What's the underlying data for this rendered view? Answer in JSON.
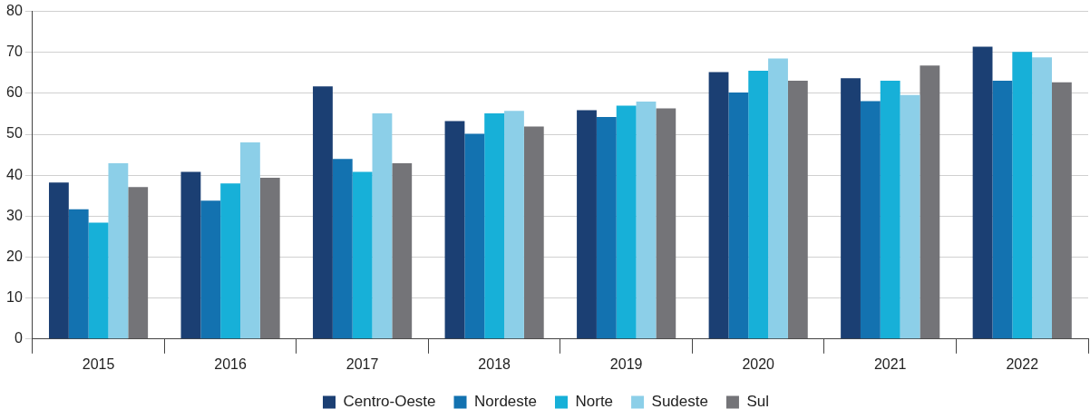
{
  "chart_data": {
    "type": "bar",
    "categories": [
      "2015",
      "2016",
      "2017",
      "2018",
      "2019",
      "2020",
      "2021",
      "2022"
    ],
    "series": [
      {
        "name": "Centro-Oeste",
        "color": "#1b3f73",
        "values": [
          38.2,
          40.8,
          61.7,
          53.2,
          55.9,
          65.2,
          63.7,
          71.4
        ]
      },
      {
        "name": "Nordeste",
        "color": "#1372b0",
        "values": [
          31.7,
          33.8,
          44.0,
          50.1,
          54.2,
          60.2,
          58.1,
          63.1
        ]
      },
      {
        "name": "Norte",
        "color": "#17b0d8",
        "values": [
          28.4,
          38.0,
          40.8,
          55.1,
          57.0,
          65.5,
          63.1,
          70.1
        ]
      },
      {
        "name": "Sudeste",
        "color": "#8ccfe8",
        "values": [
          42.9,
          48.0,
          55.1,
          55.7,
          58.0,
          68.5,
          59.6,
          68.8
        ]
      },
      {
        "name": "Sul",
        "color": "#747478",
        "values": [
          37.1,
          39.4,
          42.9,
          51.9,
          56.3,
          63.1,
          66.8,
          62.7
        ]
      }
    ],
    "ylim": [
      0,
      80
    ],
    "yticks": [
      0,
      10,
      20,
      30,
      40,
      50,
      60,
      70,
      80
    ],
    "grid": "y",
    "legend": "bottom"
  }
}
